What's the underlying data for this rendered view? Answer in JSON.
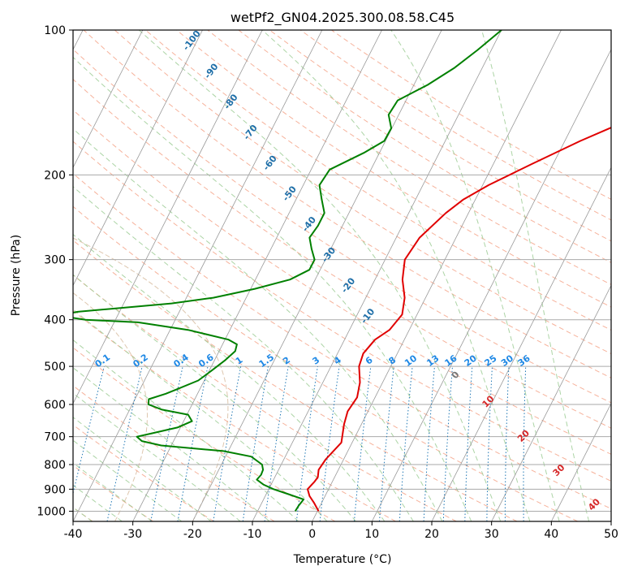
{
  "chart_data": {
    "type": "skew-t",
    "title": "wetPf2_GN04.2025.300.08.58.C45",
    "xlabel": "Temperature (°C)",
    "ylabel": "Pressure (hPa)",
    "xlim": [
      -40,
      50
    ],
    "ylim": [
      1050,
      100
    ],
    "x_ticks": [
      "-40",
      "-30",
      "-20",
      "-10",
      "0",
      "10",
      "20",
      "30",
      "40",
      "50"
    ],
    "y_ticks": [
      "100",
      "200",
      "300",
      "400",
      "500",
      "600",
      "700",
      "800",
      "900",
      "1000"
    ],
    "y_tick_values": [
      100,
      200,
      300,
      400,
      500,
      600,
      700,
      800,
      900,
      1000
    ],
    "temperature_profile": {
      "name": "Temperature",
      "color": "#e00000",
      "points": [
        [
          1000,
          0.2
        ],
        [
          960,
          -1.3
        ],
        [
          930,
          -2.6
        ],
        [
          900,
          -3.5
        ],
        [
          870,
          -3.0
        ],
        [
          850,
          -2.8
        ],
        [
          820,
          -3.3
        ],
        [
          780,
          -3.0
        ],
        [
          720,
          -1.8
        ],
        [
          660,
          -2.9
        ],
        [
          620,
          -3.4
        ],
        [
          580,
          -3.0
        ],
        [
          540,
          -3.8
        ],
        [
          500,
          -5.3
        ],
        [
          470,
          -5.7
        ],
        [
          440,
          -4.9
        ],
        [
          420,
          -3.3
        ],
        [
          390,
          -2.5
        ],
        [
          360,
          -3.5
        ],
        [
          330,
          -5.4
        ],
        [
          300,
          -6.7
        ],
        [
          270,
          -6.1
        ],
        [
          240,
          -3.8
        ],
        [
          225,
          -2.0
        ],
        [
          210,
          1.0
        ],
        [
          190,
          6.4
        ],
        [
          170,
          12.6
        ],
        [
          150,
          20.5
        ],
        [
          130,
          29.1
        ],
        [
          115,
          36.1
        ],
        [
          105,
          40.2
        ],
        [
          100,
          42.1
        ]
      ]
    },
    "dewpoint_profile": {
      "name": "Dewpoint",
      "color": "#008000",
      "points": [
        [
          1000,
          -3.7
        ],
        [
          975,
          -3.6
        ],
        [
          945,
          -3.3
        ],
        [
          920,
          -6.5
        ],
        [
          900,
          -9.2
        ],
        [
          880,
          -11.3
        ],
        [
          860,
          -12.8
        ],
        [
          840,
          -12.5
        ],
        [
          820,
          -12.6
        ],
        [
          800,
          -13.2
        ],
        [
          770,
          -15.7
        ],
        [
          750,
          -20.8
        ],
        [
          730,
          -31.7
        ],
        [
          715,
          -35.3
        ],
        [
          700,
          -36.5
        ],
        [
          690,
          -34.5
        ],
        [
          670,
          -30.5
        ],
        [
          650,
          -28.6
        ],
        [
          630,
          -29.8
        ],
        [
          615,
          -34.6
        ],
        [
          600,
          -37.3
        ],
        [
          585,
          -37.7
        ],
        [
          570,
          -35.3
        ],
        [
          560,
          -34.1
        ],
        [
          535,
          -31.0
        ],
        [
          510,
          -29.6
        ],
        [
          485,
          -28.2
        ],
        [
          465,
          -27.3
        ],
        [
          450,
          -27.6
        ],
        [
          440,
          -29.4
        ],
        [
          420,
          -37.0
        ],
        [
          405,
          -46.0
        ],
        [
          400,
          -55.0
        ],
        [
          392,
          -60.0
        ],
        [
          385,
          -57.0
        ],
        [
          378,
          -50.0
        ],
        [
          370,
          -42.0
        ],
        [
          360,
          -35.5
        ],
        [
          345,
          -29.3
        ],
        [
          330,
          -24.2
        ],
        [
          315,
          -21.8
        ],
        [
          300,
          -21.8
        ],
        [
          285,
          -23.2
        ],
        [
          270,
          -24.5
        ],
        [
          255,
          -24.1
        ],
        [
          240,
          -24.1
        ],
        [
          225,
          -25.7
        ],
        [
          210,
          -27.3
        ],
        [
          195,
          -26.9
        ],
        [
          180,
          -22.6
        ],
        [
          170,
          -20.2
        ],
        [
          160,
          -20.1
        ],
        [
          150,
          -21.7
        ],
        [
          140,
          -21.4
        ],
        [
          130,
          -17.7
        ],
        [
          120,
          -14.7
        ],
        [
          110,
          -12.3
        ],
        [
          100,
          -10.0
        ]
      ]
    },
    "isotherms_step": 10,
    "dry_adiabats_theta_K": [
      -70,
      -60,
      -50,
      -40,
      -30,
      -20,
      -10,
      0,
      10,
      20,
      30,
      40,
      50,
      60,
      70,
      80,
      90,
      100,
      110,
      120,
      130,
      140,
      150,
      160,
      170,
      180
    ],
    "moist_adiabats_C": [
      -40,
      -35,
      -30,
      -25,
      -20,
      -15,
      -10,
      -5,
      0,
      5,
      10,
      15,
      20,
      25,
      30,
      35,
      40,
      45
    ],
    "mixing_ratios_gkg": [
      0.1,
      0.2,
      0.4,
      0.6,
      1,
      1.5,
      2,
      3,
      4,
      6,
      8,
      10,
      13,
      16,
      20,
      25,
      30,
      36
    ],
    "mixing_ratio_labels": [
      "0.1",
      "0.2",
      "0.4",
      "0.6",
      "1",
      "1.5",
      "2",
      "3",
      "4",
      "6",
      "8",
      "10",
      "13",
      "16",
      "20",
      "25",
      "30",
      "36"
    ],
    "temperature_labels": {
      "blue_values": [
        -100,
        -90,
        -80,
        -70,
        -60,
        -50,
        -40,
        -30,
        -20,
        -10
      ],
      "blue_text": [
        "-100",
        "-90",
        "-80",
        "-70",
        "-60",
        "-50",
        "-40",
        "-30",
        "-20",
        "-10"
      ],
      "zero_text": "0",
      "red_values": [
        10,
        20,
        30,
        40
      ],
      "red_text": [
        "10",
        "20",
        "30",
        "40"
      ]
    },
    "colors": {
      "isotherm": "#999999",
      "isobar": "#aaaaaa",
      "dry_adiabat": "#f4a58a",
      "moist_adiabat": "#9dcc95",
      "mixing_ratio": "#1f77b4",
      "temp_label_blue": "#1f6fa8",
      "temp_label_red": "#d62728",
      "mixing_label": "#1e88e5",
      "curved_line": "#c8a27a"
    }
  }
}
